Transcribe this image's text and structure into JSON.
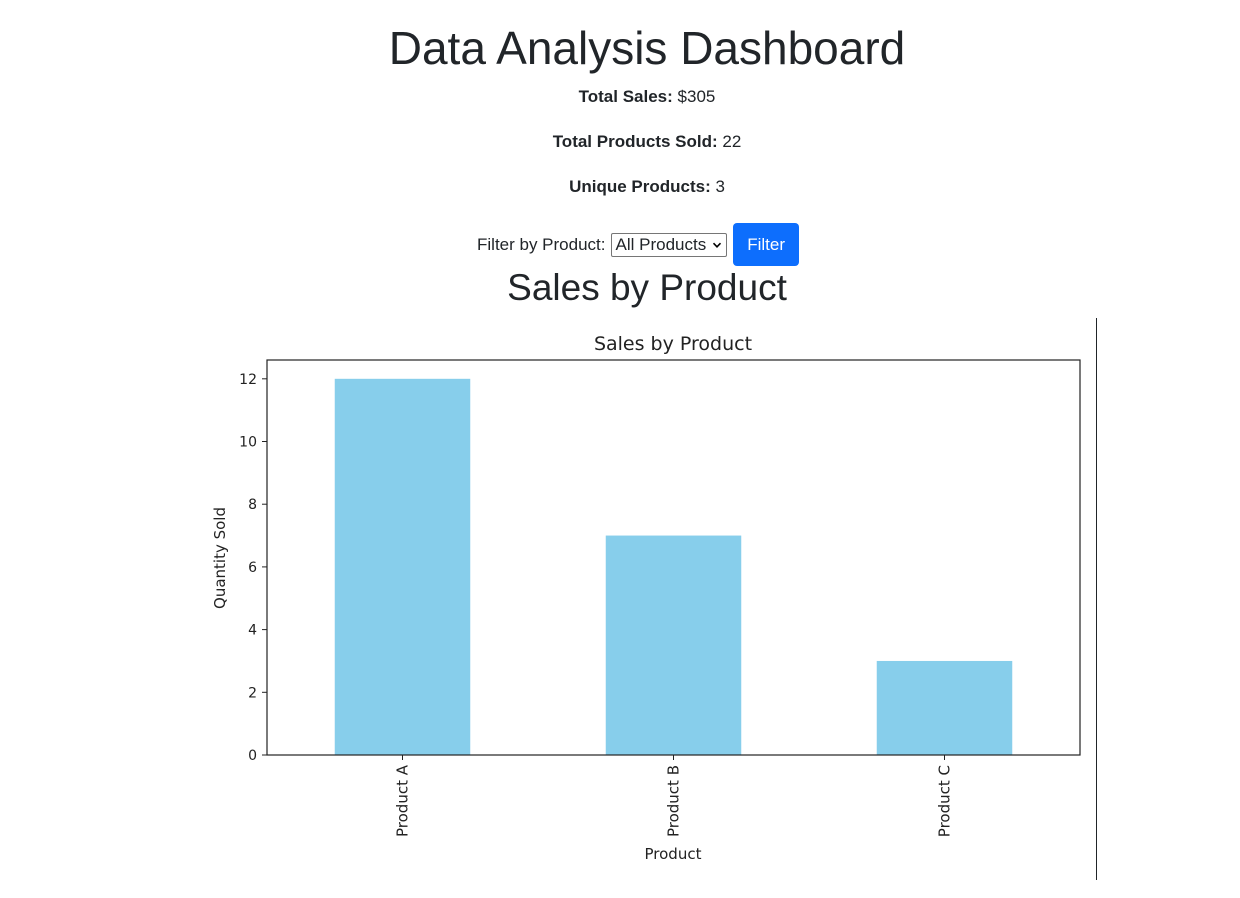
{
  "header": {
    "title": "Data Analysis Dashboard"
  },
  "stats": {
    "total_sales_label": "Total Sales:",
    "total_sales_value": "$305",
    "total_sold_label": "Total Products Sold:",
    "total_sold_value": "22",
    "unique_label": "Unique Products:",
    "unique_value": "3"
  },
  "filter": {
    "label": "Filter by Product:",
    "selected": "All Products",
    "button_label": "Filter"
  },
  "section": {
    "title": "Sales by Product"
  },
  "colors": {
    "bar": "#87ceeb",
    "button": "#0d6efd"
  },
  "chart_data": {
    "type": "bar",
    "title": "Sales by Product",
    "xlabel": "Product",
    "ylabel": "Quantity Sold",
    "categories": [
      "Product A",
      "Product B",
      "Product C"
    ],
    "values": [
      12,
      7,
      3
    ],
    "ylim": [
      0,
      12.6
    ],
    "yticks": [
      0,
      2,
      4,
      6,
      8,
      10,
      12
    ],
    "grid": false,
    "legend": false
  }
}
